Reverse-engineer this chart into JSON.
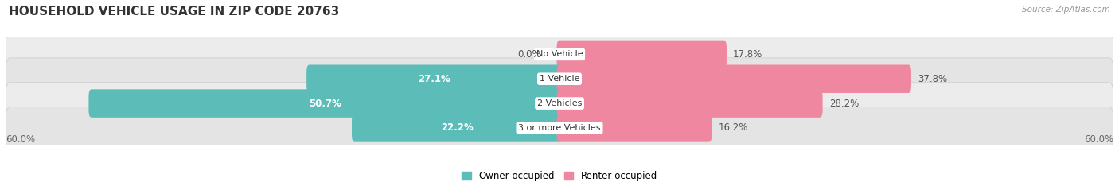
{
  "title": "HOUSEHOLD VEHICLE USAGE IN ZIP CODE 20763",
  "source": "Source: ZipAtlas.com",
  "categories": [
    "No Vehicle",
    "1 Vehicle",
    "2 Vehicles",
    "3 or more Vehicles"
  ],
  "owner_values": [
    0.0,
    27.1,
    50.7,
    22.2
  ],
  "renter_values": [
    17.8,
    37.8,
    28.2,
    16.2
  ],
  "owner_color": "#5bbcb8",
  "renter_color": "#f087a0",
  "row_bg_color": "#e8e8e8",
  "row_pill_color": "#f0f0f0",
  "axis_max": 60.0,
  "legend_labels": [
    "Owner-occupied",
    "Renter-occupied"
  ],
  "title_fontsize": 11,
  "label_fontsize": 8.5,
  "tick_fontsize": 8.5,
  "axis_label_left": "60.0%",
  "axis_label_right": "60.0%",
  "value_label_color_dark": "#555555",
  "value_label_color_white": "#ffffff"
}
